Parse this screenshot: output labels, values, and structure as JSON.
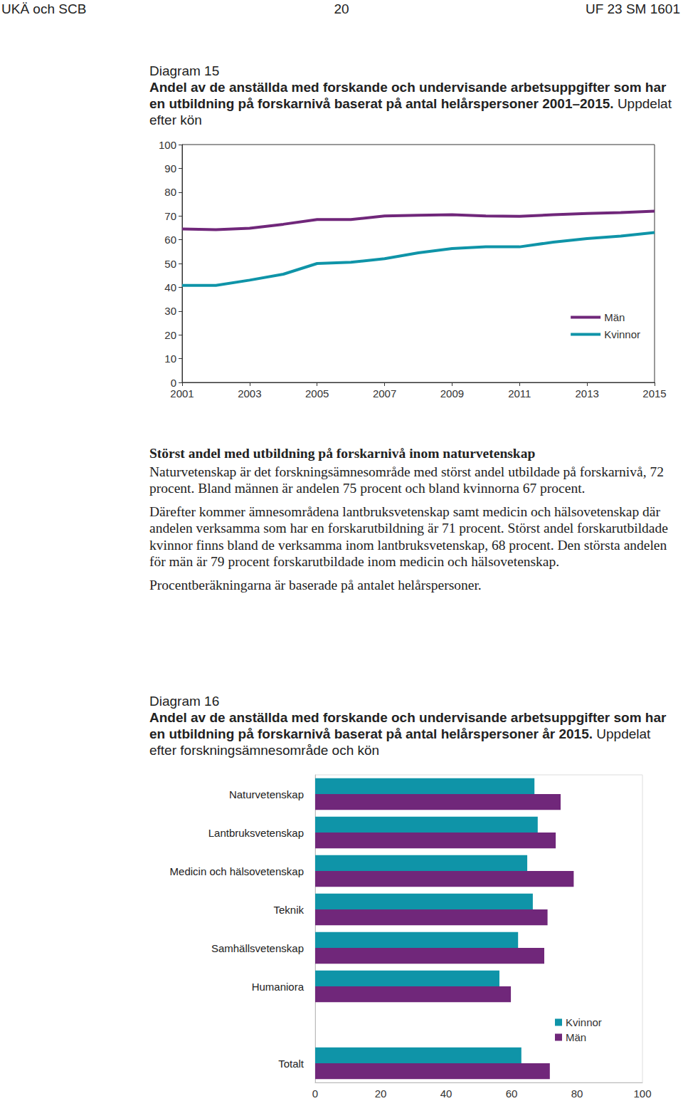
{
  "header": {
    "left": "UKÄ och SCB",
    "center": "20",
    "right": "UF 23 SM 1601"
  },
  "chart_data": [
    {
      "type": "line",
      "figure_label": "Diagram 15",
      "title": "Andel av de anställda med forskande och undervisande arbetsuppgifter som har en utbildning på forskarnivå baserat på antal helårspersoner 2001–2015.",
      "subtitle": "Uppdelat efter kön",
      "x": [
        2001,
        2002,
        2003,
        2004,
        2005,
        2006,
        2007,
        2008,
        2009,
        2010,
        2011,
        2012,
        2013,
        2014,
        2015
      ],
      "xlim": [
        2001,
        2015
      ],
      "xticks": [
        2001,
        2003,
        2005,
        2007,
        2009,
        2011,
        2013,
        2015
      ],
      "ylim": [
        0,
        100
      ],
      "yticks": [
        0,
        10,
        20,
        30,
        40,
        50,
        60,
        70,
        80,
        90,
        100
      ],
      "series": [
        {
          "name": "Män",
          "color": "#70277a",
          "values": [
            64.5,
            64.2,
            64.8,
            66.5,
            68.5,
            68.5,
            70,
            70.3,
            70.5,
            70,
            69.8,
            70.5,
            71,
            71.4,
            72
          ]
        },
        {
          "name": "Kvinnor",
          "color": "#0f94a8",
          "values": [
            40.8,
            40.8,
            43,
            45.5,
            50,
            50.5,
            52,
            54.5,
            56.3,
            57,
            57,
            59,
            60.5,
            61.5,
            63
          ]
        }
      ],
      "legend": "right",
      "grid": false
    },
    {
      "type": "bar",
      "figure_label": "Diagram 16",
      "title": "Andel av de anställda med forskande och undervisande arbetsuppgifter som har en utbildning på forskarnivå baserat på antal helårspersoner år 2015.",
      "subtitle": "Uppdelat efter forskningsämnesområde och kön",
      "orientation": "horizontal",
      "categories": [
        "Naturvetenskap",
        "Lantbruksvetenskap",
        "Medicin och hälsovetenskap",
        "Teknik",
        "Samhällsvetenskap",
        "Humaniora",
        null,
        "Totalt"
      ],
      "xlim": [
        0,
        100
      ],
      "xticks": [
        0,
        20,
        40,
        60,
        80,
        100
      ],
      "series": [
        {
          "name": "Kvinnor",
          "color": "#0f94a8",
          "values": [
            67,
            68,
            64.8,
            66.5,
            62,
            56.3,
            null,
            63
          ]
        },
        {
          "name": "Män",
          "color": "#70277a",
          "values": [
            75,
            73.5,
            79,
            71,
            70,
            59.8,
            null,
            71.7
          ]
        }
      ],
      "legend": "bottom-right",
      "grid": false
    }
  ],
  "text": {
    "heading": "Störst andel med utbildning på forskarnivå inom naturvetenskap",
    "paragraphs": [
      "Naturvetenskap är det forskningsämnesområde med störst andel utbildade på forskarnivå, 72 procent. Bland männen är andelen 75 procent och bland kvinnorna 67 procent.",
      "Därefter kommer ämnesområdena lantbruksvetenskap samt medicin och hälsovetenskap där andelen verksamma som har en forskarutbildning är 71 procent. Störst andel forskarutbildade kvinnor finns bland de verksamma inom lantbruksvetenskap, 68 procent. Den största andelen för män är 79 procent forskarutbildade inom medicin och hälsovetenskap.",
      "Procentberäkningarna är baserade på antalet helårspersoner."
    ]
  }
}
